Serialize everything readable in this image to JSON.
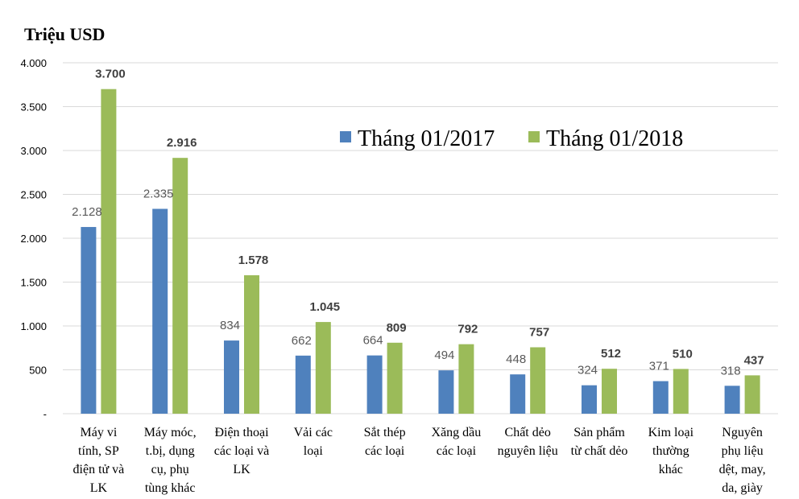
{
  "chart_data": {
    "type": "bar",
    "ylabel": "Triệu USD",
    "ylim": [
      0,
      4000
    ],
    "yticks": [
      "-",
      "500",
      "1.000",
      "1.500",
      "2.000",
      "2.500",
      "3.000",
      "3.500",
      "4.000"
    ],
    "ytick_values": [
      0,
      500,
      1000,
      1500,
      2000,
      2500,
      3000,
      3500,
      4000
    ],
    "grid": true,
    "legend_position": "top-right",
    "categories": [
      [
        "Máy vi",
        "tính, SP",
        "điện tử và",
        "LK"
      ],
      [
        "Máy móc,",
        "t.bị, dụng",
        "cụ, phụ",
        "tùng khác"
      ],
      [
        "Điện thoại",
        "các loại và",
        "LK"
      ],
      [
        "Vải các",
        "loại"
      ],
      [
        "Sắt thép",
        "các loại"
      ],
      [
        "Xăng dầu",
        "các loại"
      ],
      [
        "Chất dẻo",
        "nguyên liệu"
      ],
      [
        "Sản phẩm",
        "từ chất dẻo"
      ],
      [
        "Kim loại",
        "thường",
        "khác"
      ],
      [
        "Nguyên",
        "phụ liệu",
        "dệt, may,",
        "da, giày"
      ]
    ],
    "series": [
      {
        "name": "Tháng 01/2017",
        "color": "#4F81BD",
        "values": [
          2128,
          2335,
          834,
          662,
          664,
          494,
          448,
          324,
          371,
          318
        ],
        "labels": [
          "2.128",
          "2.335",
          "834",
          "662",
          "664",
          "494",
          "448",
          "324",
          "371",
          "318"
        ]
      },
      {
        "name": "Tháng 01/2018",
        "color": "#9BBB59",
        "values": [
          3700,
          2916,
          1578,
          1045,
          809,
          792,
          757,
          512,
          510,
          437
        ],
        "labels": [
          "3.700",
          "2.916",
          "1.578",
          "1.045",
          "809",
          "792",
          "757",
          "512",
          "510",
          "437"
        ]
      }
    ]
  }
}
